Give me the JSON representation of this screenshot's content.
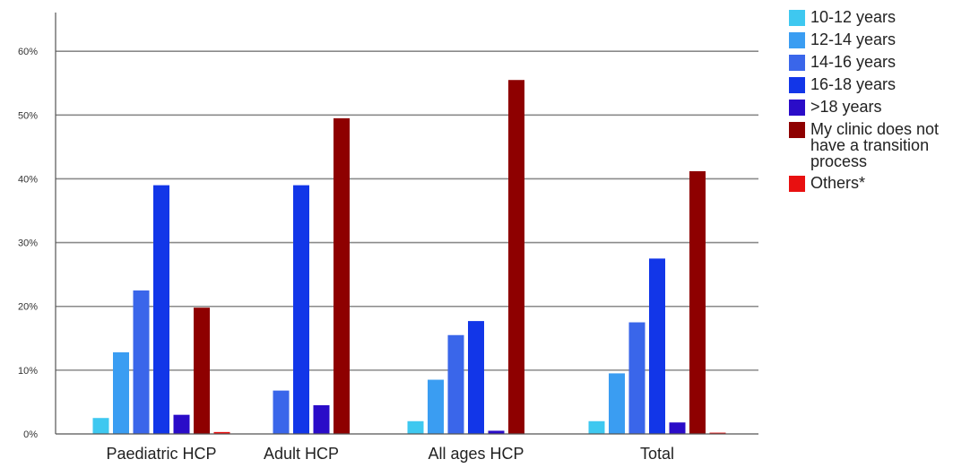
{
  "chart_data": {
    "type": "bar",
    "categories": [
      "Paediatric HCP",
      "Adult HCP",
      "All ages HCP",
      "Total"
    ],
    "yticks": [
      "0%",
      "10%",
      "20%",
      "30%",
      "40%",
      "50%",
      "60%"
    ],
    "ylim": [
      0,
      60
    ],
    "grid": true,
    "legend_position": "right",
    "series": [
      {
        "name": "10-12 years",
        "color": "#3ec8f0",
        "values": [
          2.5,
          0,
          2,
          2
        ]
      },
      {
        "name": "12-14 years",
        "color": "#3a9df2",
        "values": [
          12.8,
          0,
          8.5,
          9.5
        ]
      },
      {
        "name": "14-16 years",
        "color": "#3a66ea",
        "values": [
          22.5,
          6.8,
          15.5,
          17.5
        ]
      },
      {
        "name": "16-18 years",
        "color": "#1236e8",
        "values": [
          39,
          39,
          17.7,
          27.5
        ]
      },
      {
        "name": ">18 years",
        "color": "#2a0cc8",
        "values": [
          3,
          4.5,
          0.5,
          1.8
        ]
      },
      {
        "name": "My clinic does not have a transition process",
        "color": "#8e0000",
        "values": [
          19.8,
          49.5,
          55.5,
          41.2
        ]
      },
      {
        "name": "Others*",
        "color": "#e81010",
        "values": [
          0.3,
          0,
          0,
          0.2
        ]
      }
    ]
  }
}
